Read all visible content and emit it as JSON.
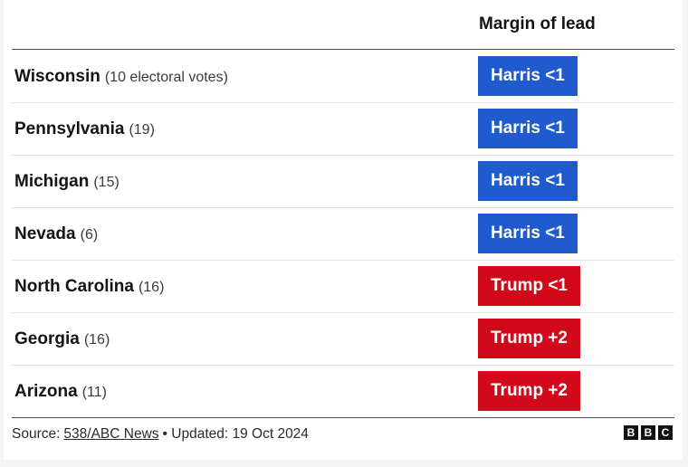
{
  "header": {
    "title": "Margin of lead"
  },
  "rows": [
    {
      "state": "Wisconsin",
      "votes": "(10 electoral votes)",
      "margin": "Harris <1",
      "color": "#1f5bcc"
    },
    {
      "state": "Pennsylvania",
      "votes": "(19)",
      "margin": "Harris <1",
      "color": "#1f5bcc"
    },
    {
      "state": "Michigan",
      "votes": "(15)",
      "margin": "Harris <1",
      "color": "#1f5bcc"
    },
    {
      "state": "Nevada",
      "votes": "(6)",
      "margin": "Harris <1",
      "color": "#1f5bcc"
    },
    {
      "state": "North Carolina",
      "votes": "(16)",
      "margin": "Trump <1",
      "color": "#d1091a"
    },
    {
      "state": "Georgia",
      "votes": "(16)",
      "margin": "Trump +2",
      "color": "#d1091a"
    },
    {
      "state": "Arizona",
      "votes": "(11)",
      "margin": "Trump +2",
      "color": "#d1091a"
    }
  ],
  "footer": {
    "source_label": "Source:",
    "source": "538/ABC News",
    "updated": "• Updated: 19 Oct 2024",
    "logo": [
      "B",
      "B",
      "C"
    ]
  }
}
